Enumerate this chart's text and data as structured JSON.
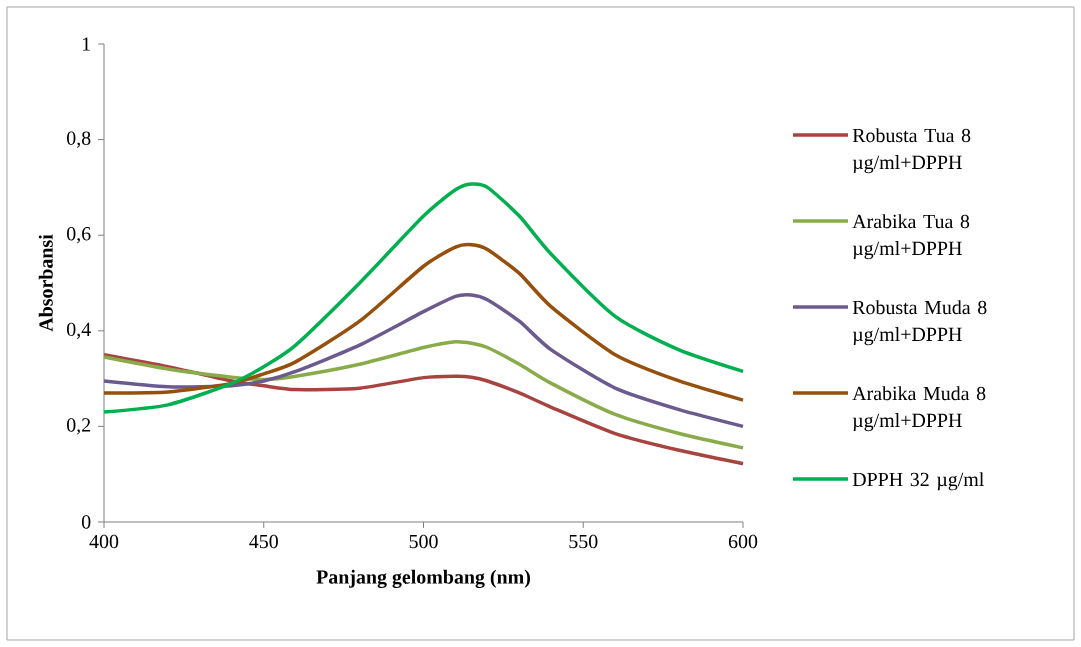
{
  "chart_data": {
    "type": "line",
    "xlabel": "Panjang gelombang (nm)",
    "ylabel": "Absorbansi",
    "x": [
      400,
      420,
      440,
      450,
      460,
      480,
      500,
      510,
      515,
      520,
      530,
      540,
      560,
      580,
      600
    ],
    "series": [
      {
        "name": "Robusta Tua 8 µg/ml+DPPH",
        "color": "#a84440",
        "values": [
          0.35,
          0.325,
          0.295,
          0.285,
          0.277,
          0.28,
          0.302,
          0.305,
          0.303,
          0.295,
          0.27,
          0.24,
          0.185,
          0.15,
          0.122
        ]
      },
      {
        "name": "Arabika Tua 8 µg/ml+DPPH",
        "color": "#8aab4a",
        "values": [
          0.345,
          0.32,
          0.303,
          0.298,
          0.305,
          0.33,
          0.365,
          0.377,
          0.374,
          0.365,
          0.33,
          0.29,
          0.225,
          0.185,
          0.155
        ]
      },
      {
        "name": "Robusta Muda 8 µg/ml+DPPH",
        "color": "#6c5a8f",
        "values": [
          0.295,
          0.283,
          0.285,
          0.295,
          0.315,
          0.37,
          0.44,
          0.472,
          0.475,
          0.465,
          0.42,
          0.36,
          0.28,
          0.235,
          0.2
        ]
      },
      {
        "name": "Arabika Muda 8 µg/ml+DPPH",
        "color": "#974f0c",
        "values": [
          0.27,
          0.272,
          0.29,
          0.31,
          0.335,
          0.42,
          0.535,
          0.575,
          0.58,
          0.57,
          0.52,
          0.45,
          0.35,
          0.295,
          0.255
        ]
      },
      {
        "name": "DPPH 32 µg/ml",
        "color": "#00b050",
        "values": [
          0.23,
          0.245,
          0.29,
          0.325,
          0.37,
          0.5,
          0.64,
          0.695,
          0.707,
          0.7,
          0.64,
          0.56,
          0.43,
          0.36,
          0.315
        ]
      }
    ],
    "xlim": [
      400,
      600
    ],
    "xticks": [
      400,
      450,
      500,
      550,
      600
    ],
    "ylim": [
      0,
      1
    ],
    "yticks": [
      {
        "value": 0,
        "label": "0"
      },
      {
        "value": 0.2,
        "label": "0,2"
      },
      {
        "value": 0.4,
        "label": "0,4"
      },
      {
        "value": 0.6,
        "label": "0,6"
      },
      {
        "value": 0.8,
        "label": "0,8"
      },
      {
        "value": 1,
        "label": "1"
      }
    ],
    "grid": false,
    "legend": "right",
    "line_style": "solid"
  }
}
